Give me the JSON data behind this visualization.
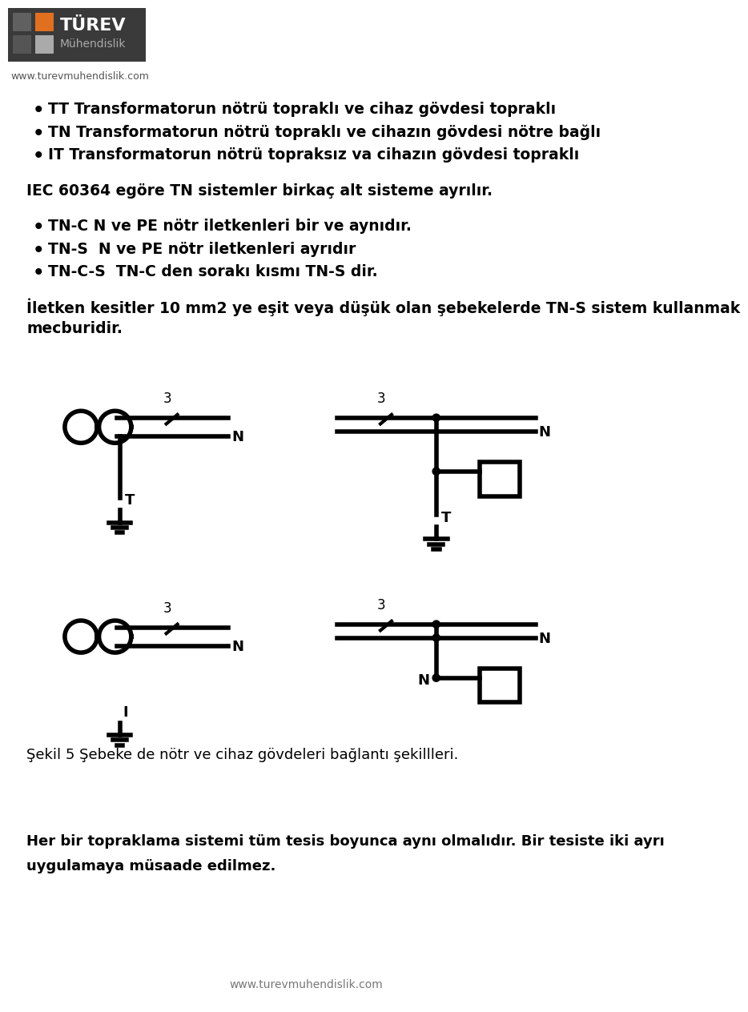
{
  "bg_color": "#ffffff",
  "text_color": "#000000",
  "logo_bg": "#3a3a3a",
  "logo_orange": "#e07020",
  "logo_gray_dark": "#606060",
  "logo_gray_light": "#aaaaaa",
  "website": "www.turevmuhendislik.com",
  "bullet1": "TT Transformatorun nötrü topraklı ve cihaz gövdesi topraklı",
  "bullet2": "TN Transformatorun nötrü topraklı ve cihazın gövdesi nötre bağlı",
  "bullet3": "IT Transformatorun nötrü topraksız va cihazın gövdesi topraklı",
  "para1": "IEC 60364 egöre TN sistemler birkaç alt sisteme ayrılır.",
  "bullet4": "TN-C N ve PE nötr iletkenleri bir ve aynıdır.",
  "bullet5": "TN-S  N ve PE nötr iletkenleri ayrıdır",
  "bullet6": "TN-C-S  TN-C den sorakı kısmı TN-S dir.",
  "para2a": "İletken kesitler 10 mm2 ye eşit veya düşük olan şebekelerde TN-S sistem kullanmak",
  "para2b": "mecburidir.",
  "caption": "Şekil 5 Şebeke de nötr ve cihaz gövdeleri bağlantı şekillleri.",
  "footer1": "Her bir topraklama sistemi tüm tesis boyunca aynı olmalıdır. Bir tesiste iki ayrı",
  "footer2": "uygulamaya müsaade edilmez.",
  "website_bottom": "www.turevmuhendislik.com",
  "lw": 3.5,
  "diag_lw": 4.0
}
